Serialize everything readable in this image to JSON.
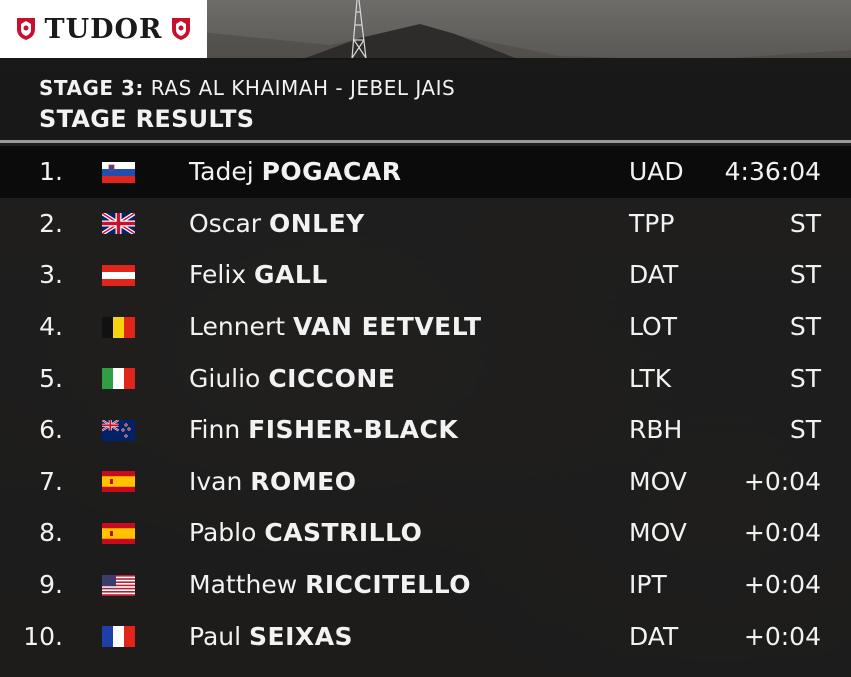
{
  "sponsor": {
    "brand": "TUDOR"
  },
  "header": {
    "stage_lead": "STAGE 3:",
    "stage_route": "RAS AL KHAIMAH - JEBEL JAIS",
    "title": "STAGE RESULTS"
  },
  "results": [
    {
      "pos": "1.",
      "flag": "slovenia-flag",
      "first": "Tadej",
      "last": "POGACAR",
      "team": "UAD",
      "time": "4:36:04"
    },
    {
      "pos": "2.",
      "flag": "united-kingdom-flag",
      "first": "Oscar",
      "last": "ONLEY",
      "team": "TPP",
      "time": "ST"
    },
    {
      "pos": "3.",
      "flag": "austria-flag",
      "first": "Felix",
      "last": "GALL",
      "team": "DAT",
      "time": "ST"
    },
    {
      "pos": "4.",
      "flag": "belgium-flag",
      "first": "Lennert",
      "last": "VAN EETVELT",
      "team": "LOT",
      "time": "ST"
    },
    {
      "pos": "5.",
      "flag": "italy-flag",
      "first": "Giulio",
      "last": "CICCONE",
      "team": "LTK",
      "time": "ST"
    },
    {
      "pos": "6.",
      "flag": "new-zealand-flag",
      "first": "Finn",
      "last": "FISHER-BLACK",
      "team": "RBH",
      "time": "ST"
    },
    {
      "pos": "7.",
      "flag": "spain-flag",
      "first": "Ivan",
      "last": "ROMEO",
      "team": "MOV",
      "time": "+0:04"
    },
    {
      "pos": "8.",
      "flag": "spain-flag",
      "first": "Pablo",
      "last": "CASTRILLO",
      "team": "MOV",
      "time": "+0:04"
    },
    {
      "pos": "9.",
      "flag": "united-states-flag",
      "first": "Matthew",
      "last": "RICCITELLO",
      "team": "IPT",
      "time": "+0:04"
    },
    {
      "pos": "10.",
      "flag": "france-flag",
      "first": "Paul",
      "last": "SEIXAS",
      "team": "DAT",
      "time": "+0:04"
    }
  ],
  "colors": {
    "panel": "#161616",
    "highlight_row": "#080808",
    "text": "#f2f2f2",
    "sponsor_red": "#c8102e",
    "divider": "#9a9a9a"
  }
}
